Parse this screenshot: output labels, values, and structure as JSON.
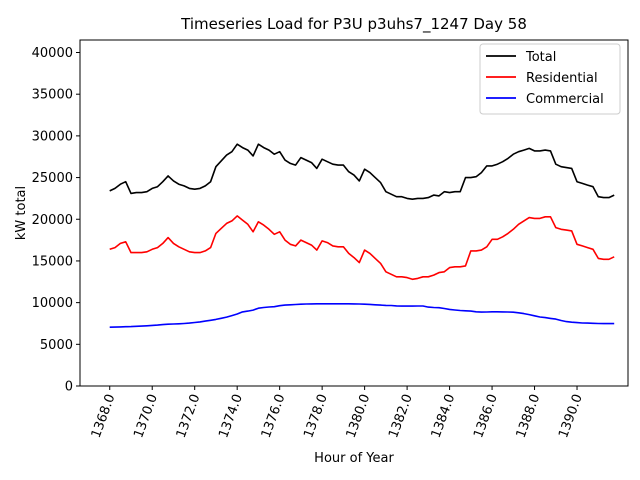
{
  "chart_data": {
    "type": "line",
    "title": "Timeseries Load for P3U p3uhs7_1247  Day 58",
    "xlabel": "Hour of Year",
    "ylabel": "kW total",
    "xlim": [
      1366.6,
      1392.4
    ],
    "ylim": [
      0,
      41500
    ],
    "xticks": [
      1368,
      1370,
      1372,
      1374,
      1376,
      1378,
      1380,
      1382,
      1384,
      1386,
      1388,
      1390
    ],
    "xtick_labels": [
      "1368.0",
      "1370.0",
      "1372.0",
      "1374.0",
      "1376.0",
      "1378.0",
      "1380.0",
      "1382.0",
      "1384.0",
      "1386.0",
      "1388.0",
      "1390.0"
    ],
    "yticks": [
      0,
      5000,
      10000,
      15000,
      20000,
      25000,
      30000,
      35000,
      40000
    ],
    "ytick_labels": [
      "0",
      "5000",
      "10000",
      "15000",
      "20000",
      "25000",
      "30000",
      "35000",
      "40000"
    ],
    "legend_position": "top-right",
    "grid": false,
    "x": [
      1368.0,
      1368.25,
      1368.5,
      1368.75,
      1369.0,
      1369.25,
      1369.5,
      1369.75,
      1370.0,
      1370.25,
      1370.5,
      1370.75,
      1371.0,
      1371.25,
      1371.5,
      1371.75,
      1372.0,
      1372.25,
      1372.5,
      1372.75,
      1373.0,
      1373.25,
      1373.5,
      1373.75,
      1374.0,
      1374.25,
      1374.5,
      1374.75,
      1375.0,
      1375.25,
      1375.5,
      1375.75,
      1376.0,
      1376.25,
      1376.5,
      1376.75,
      1377.0,
      1377.25,
      1377.5,
      1377.75,
      1378.0,
      1378.25,
      1378.5,
      1378.75,
      1379.0,
      1379.25,
      1379.5,
      1379.75,
      1380.0,
      1380.25,
      1380.5,
      1380.75,
      1381.0,
      1381.25,
      1381.5,
      1381.75,
      1382.0,
      1382.25,
      1382.5,
      1382.75,
      1383.0,
      1383.25,
      1383.5,
      1383.75,
      1384.0,
      1384.25,
      1384.5,
      1384.75,
      1385.0,
      1385.25,
      1385.5,
      1385.75,
      1386.0,
      1386.25,
      1386.5,
      1386.75,
      1387.0,
      1387.25,
      1387.5,
      1387.75,
      1388.0,
      1388.25,
      1388.5,
      1388.75,
      1389.0,
      1389.25,
      1389.5,
      1389.75,
      1390.0,
      1390.25,
      1390.5,
      1390.75,
      1391.0,
      1391.25,
      1391.5,
      1391.75
    ],
    "series": [
      {
        "name": "Total",
        "color": "#000000",
        "values": [
          23400,
          23700,
          24200,
          24500,
          23100,
          23200,
          23200,
          23300,
          23700,
          23900,
          24500,
          25200,
          24600,
          24200,
          24000,
          23700,
          23600,
          23700,
          24000,
          24500,
          26300,
          27000,
          27700,
          28100,
          29000,
          28600,
          28300,
          27600,
          29000,
          28600,
          28300,
          27800,
          28100,
          27100,
          26700,
          26500,
          27400,
          27100,
          26800,
          26100,
          27200,
          26900,
          26600,
          26500,
          26500,
          25700,
          25300,
          24600,
          26000,
          25600,
          25000,
          24400,
          23300,
          23000,
          22700,
          22700,
          22500,
          22400,
          22500,
          22500,
          22600,
          22900,
          22800,
          23300,
          23200,
          23300,
          23300,
          25000,
          25000,
          25100,
          25600,
          26400,
          26400,
          26600,
          26900,
          27300,
          27800,
          28100,
          28300,
          28500,
          28200,
          28200,
          28300,
          28200,
          26600,
          26300,
          26200,
          26100,
          24500,
          24300,
          24100,
          23900,
          22700,
          22600,
          22600,
          22900
        ]
      },
      {
        "name": "Residential",
        "color": "#ff0000",
        "values": [
          16400,
          16600,
          17100,
          17300,
          16000,
          16000,
          16000,
          16100,
          16400,
          16600,
          17100,
          17800,
          17100,
          16700,
          16400,
          16100,
          16000,
          16000,
          16200,
          16600,
          18300,
          18900,
          19500,
          19800,
          20400,
          19900,
          19400,
          18500,
          19700,
          19300,
          18800,
          18200,
          18500,
          17500,
          17000,
          16800,
          17500,
          17200,
          16900,
          16300,
          17400,
          17200,
          16800,
          16700,
          16700,
          15900,
          15400,
          14800,
          16300,
          15900,
          15300,
          14700,
          13700,
          13400,
          13100,
          13100,
          13000,
          12800,
          12900,
          13100,
          13100,
          13300,
          13600,
          13700,
          14200,
          14300,
          14300,
          14400,
          16200,
          16200,
          16300,
          16700,
          17600,
          17600,
          17900,
          18300,
          18800,
          19400,
          19800,
          20200,
          20100,
          20100,
          20300,
          20300,
          19000,
          18800,
          18700,
          18600,
          17000,
          16800,
          16600,
          16400,
          15300,
          15200,
          15200,
          15500
        ]
      },
      {
        "name": "Commercial",
        "color": "#0000ff",
        "values": [
          7050,
          7070,
          7090,
          7110,
          7130,
          7160,
          7190,
          7220,
          7270,
          7310,
          7360,
          7410,
          7440,
          7460,
          7500,
          7550,
          7620,
          7690,
          7780,
          7880,
          7990,
          8120,
          8270,
          8440,
          8640,
          8890,
          8980,
          9100,
          9330,
          9420,
          9470,
          9510,
          9630,
          9700,
          9740,
          9780,
          9810,
          9830,
          9850,
          9860,
          9860,
          9860,
          9860,
          9860,
          9860,
          9860,
          9850,
          9840,
          9810,
          9790,
          9740,
          9700,
          9670,
          9650,
          9610,
          9580,
          9580,
          9580,
          9590,
          9600,
          9460,
          9420,
          9390,
          9300,
          9190,
          9110,
          9050,
          9020,
          8980,
          8900,
          8860,
          8870,
          8900,
          8900,
          8890,
          8870,
          8850,
          8780,
          8680,
          8560,
          8420,
          8280,
          8200,
          8110,
          8030,
          7860,
          7720,
          7650,
          7600,
          7560,
          7540,
          7520,
          7500,
          7480,
          7480,
          7480
        ]
      }
    ]
  }
}
